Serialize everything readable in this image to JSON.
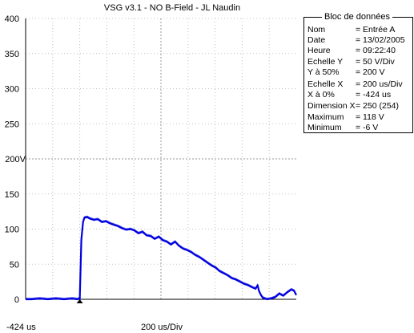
{
  "title": "VSG v3.1 - NO B-Field - JL Naudin",
  "footer": {
    "left": "-424 us",
    "center": "200 us/Div"
  },
  "colors": {
    "trace": "#0000e0",
    "grid": "#c0c0c0",
    "marker": "#000000"
  },
  "info": {
    "title": "Bloc de données",
    "rows": [
      {
        "key": "Nom",
        "value": "= Entrée A"
      },
      {
        "key": "Date",
        "value": "= 13/02/2005"
      },
      {
        "key": "Heure",
        "value": "= 09:22:40"
      },
      {
        "key": "Echelle Y",
        "value": "=    50 V/Div"
      },
      {
        "key": "Y à 50%",
        "value": "=  200 V"
      },
      {
        "key": "Echelle X",
        "value": "=  200 us/Div"
      },
      {
        "key": "X à 0%",
        "value": "= -424 us"
      },
      {
        "key": "Dimension X",
        "value": "= 250 (254)"
      },
      {
        "key": "Maximum",
        "value": "=  118 V"
      },
      {
        "key": "Minimum",
        "value": "=      -6 V"
      }
    ]
  },
  "chart_data": {
    "type": "line",
    "title": "VSG v3.1 - NO B-Field - JL Naudin",
    "xlabel": "200 us/Div",
    "ylabel": "",
    "xlim": [
      -424,
      1576
    ],
    "ylim": [
      0,
      400
    ],
    "x_unit": "us",
    "y_unit": "V",
    "y_ticks": [
      "0",
      "50",
      "100",
      "150",
      "200V",
      "250",
      "300",
      "350",
      "400"
    ],
    "x_divisions": 10,
    "y_divisions": 8,
    "grid": true,
    "trigger_marker_x": -24,
    "series": [
      {
        "x": [
          -424,
          -380,
          -320,
          -260,
          -200,
          -140,
          -80,
          -40,
          -30,
          -24,
          -20,
          -12,
          0,
          10,
          30,
          50,
          80,
          110,
          140,
          170,
          200,
          230,
          260,
          290,
          320,
          350,
          380,
          410,
          440,
          470,
          500,
          530,
          560,
          590,
          620,
          650,
          680,
          710,
          740,
          770,
          800,
          830,
          860,
          890,
          920,
          950,
          980,
          1010,
          1040,
          1070,
          1100,
          1130,
          1160,
          1190,
          1220,
          1250,
          1275,
          1290,
          1300,
          1315,
          1330,
          1360,
          1390,
          1420,
          1450,
          1480,
          1510,
          1540,
          1560,
          1576
        ],
        "values": [
          0,
          0,
          1,
          0,
          1,
          0,
          1,
          0,
          1,
          0,
          30,
          85,
          110,
          116,
          117,
          115,
          113,
          114,
          110,
          111,
          108,
          106,
          104,
          101,
          99,
          100,
          98,
          94,
          96,
          91,
          90,
          86,
          89,
          84,
          82,
          78,
          82,
          76,
          72,
          70,
          67,
          63,
          60,
          56,
          52,
          48,
          45,
          40,
          37,
          34,
          30,
          28,
          25,
          22,
          20,
          17,
          15,
          20,
          12,
          6,
          2,
          0,
          1,
          3,
          8,
          5,
          10,
          14,
          12,
          6
        ]
      }
    ]
  }
}
